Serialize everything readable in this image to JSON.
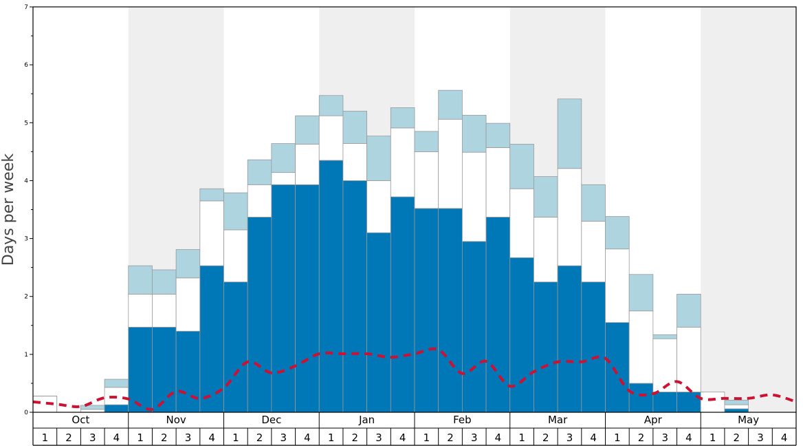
{
  "chart_data": {
    "type": "bar",
    "stacked": true,
    "ylabel": "Days per week",
    "ylim": [
      0,
      7
    ],
    "yticks": [
      "0",
      "1",
      "2",
      "3",
      "4",
      "5",
      "6",
      "7"
    ],
    "months": [
      "Oct",
      "Nov",
      "Dec",
      "Jan",
      "Feb",
      "Mar",
      "Apr",
      "May"
    ],
    "weeks": [
      "1",
      "2",
      "3",
      "4"
    ],
    "shaded_months": [
      "Nov",
      "Jan",
      "Mar",
      "May"
    ],
    "series": [
      {
        "color": "#0077b6",
        "values": [
          0,
          0,
          0,
          0.13,
          1.47,
          1.47,
          1.4,
          2.53,
          2.25,
          3.37,
          3.93,
          3.93,
          4.35,
          4.0,
          3.1,
          3.72,
          3.52,
          3.52,
          2.95,
          3.37,
          2.67,
          2.25,
          2.53,
          2.25,
          1.55,
          0.5,
          0.35,
          0.35,
          0,
          0.06,
          0,
          0
        ]
      },
      {
        "color": "#ffffff",
        "values": [
          0,
          0,
          0.05,
          0.3,
          0.57,
          0.57,
          0.92,
          1.12,
          0.9,
          0.56,
          0.21,
          0.7,
          0.77,
          0.64,
          0.9,
          1.19,
          0.98,
          1.54,
          1.54,
          1.2,
          1.19,
          1.12,
          1.68,
          1.05,
          1.27,
          1.25,
          0.92,
          1.12,
          0.35,
          0.07,
          0,
          0
        ]
      },
      {
        "color": "#aed4e0",
        "values": [
          0,
          0,
          0.07,
          0.14,
          0.49,
          0.42,
          0.49,
          0.21,
          0.64,
          0.43,
          0.5,
          0.49,
          0.35,
          0.56,
          0.77,
          0.35,
          0.35,
          0.5,
          0.64,
          0.42,
          0.77,
          0.7,
          1.2,
          0.63,
          0.56,
          0.63,
          0.07,
          0.57,
          0,
          0.08,
          0,
          0
        ]
      }
    ],
    "outline_values": [
      0.28,
      0,
      0,
      0,
      0,
      0,
      0,
      0,
      0,
      0,
      0,
      0,
      0,
      0,
      0,
      0,
      0,
      0,
      0,
      0,
      0,
      0,
      0,
      0,
      0,
      0,
      0,
      0,
      0,
      0,
      0,
      0
    ],
    "line": {
      "color": "#cc1133",
      "style": "dashed",
      "values": [
        0.18,
        0.14,
        0.1,
        0.25,
        0.23,
        0.05,
        0.36,
        0.24,
        0.42,
        0.87,
        0.68,
        0.8,
        1.01,
        1.01,
        1.01,
        0.95,
        1.01,
        1.08,
        0.67,
        0.88,
        0.45,
        0.7,
        0.87,
        0.87,
        0.93,
        0.37,
        0.32,
        0.53,
        0.24,
        0.24,
        0.24,
        0.3,
        0.18
      ]
    }
  }
}
